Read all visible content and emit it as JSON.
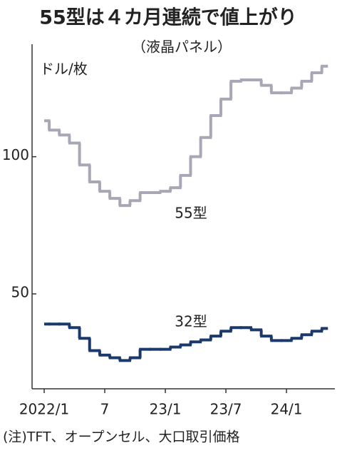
{
  "chart_data": {
    "type": "step-line",
    "title": "55型は４カ月連続で値上がり",
    "subtitle": "（液晶パネル）",
    "y_label": "ドル/枚",
    "note": "(注)TFT、オープンセル、大口取引価格",
    "categories": [
      "2022/1",
      null,
      null,
      null,
      null,
      null,
      "7",
      null,
      null,
      null,
      null,
      null,
      "23/1",
      null,
      null,
      null,
      null,
      null,
      "23/7",
      null,
      null,
      null,
      null,
      null,
      "24/1",
      null,
      null,
      null,
      null
    ],
    "series": [
      {
        "name": "55型",
        "color": "#a7a7b6",
        "values": [
          113.1,
          109.7,
          107.9,
          105,
          97,
          90.8,
          87.4,
          84.8,
          82.2,
          84,
          86.9,
          86.9,
          87.4,
          88.7,
          93.2,
          100,
          107,
          115,
          121,
          127.5,
          128,
          128,
          126,
          123.3,
          123.3,
          125,
          127.5,
          130.6,
          133
        ]
      },
      {
        "name": "32型",
        "color": "#1b3a6b",
        "values": [
          39,
          39,
          39,
          37.7,
          33.8,
          29.3,
          27.7,
          26.7,
          25.7,
          26.7,
          29.8,
          29.8,
          29.8,
          30.6,
          31.4,
          32.5,
          33.2,
          34.6,
          36.4,
          37.7,
          37.7,
          36.9,
          34.6,
          33,
          33,
          33.8,
          35.1,
          36.4,
          37.4
        ]
      }
    ],
    "ylim": [
      15.4,
      141
    ],
    "yticks": [
      50,
      100
    ]
  }
}
